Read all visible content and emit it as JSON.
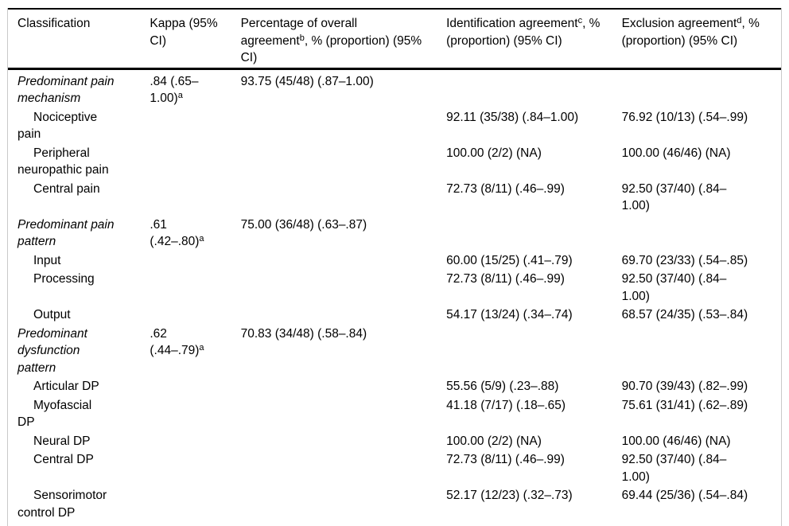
{
  "table": {
    "columns": [
      {
        "id": "classification",
        "lines": [
          "Classification"
        ]
      },
      {
        "id": "kappa",
        "lines": [
          "Kappa (95%",
          "CI)"
        ]
      },
      {
        "id": "overall-agreement",
        "lines": [
          "Percentage of overall",
          "agreement^b, % (proportion) (95%",
          "CI)"
        ]
      },
      {
        "id": "identification-agreement",
        "lines": [
          "Identification agreement^c, %",
          "(proportion) (95% CI)"
        ]
      },
      {
        "id": "exclusion-agreement",
        "lines": [
          "Exclusion agreement^d, %",
          "(proportion) (95% CI)"
        ]
      }
    ],
    "rows": [
      {
        "style": "section",
        "label_lines": [
          "Predominant pain",
          "mechanism"
        ],
        "kappa_lines": [
          ".84 (.65–",
          "1.00)^a"
        ],
        "overall_lines": [
          "93.75 (45/48) (.87–1.00)"
        ],
        "identification_lines": [],
        "exclusion_lines": []
      },
      {
        "style": "item",
        "label_lines": [
          "Nociceptive",
          "pain"
        ],
        "kappa_lines": [],
        "overall_lines": [],
        "identification_lines": [
          "92.11 (35/38) (.84–1.00)"
        ],
        "exclusion_lines": [
          "76.92 (10/13) (.54–.99)"
        ]
      },
      {
        "style": "item",
        "label_lines": [
          "Peripheral",
          "neuropathic pain"
        ],
        "kappa_lines": [],
        "overall_lines": [],
        "identification_lines": [
          "100.00 (2/2) (NA)"
        ],
        "exclusion_lines": [
          "100.00 (46/46) (NA)"
        ]
      },
      {
        "style": "item",
        "label_lines": [
          "Central pain"
        ],
        "kappa_lines": [],
        "overall_lines": [],
        "identification_lines": [
          "72.73 (8/11) (.46–.99)"
        ],
        "exclusion_lines": [
          "92.50 (37/40) (.84–",
          "1.00)"
        ]
      },
      {
        "style": "section",
        "label_lines": [
          "Predominant pain",
          "pattern"
        ],
        "kappa_lines": [
          ".61",
          "(.42–.80)^a"
        ],
        "overall_lines": [
          "75.00 (36/48) (.63–.87)"
        ],
        "identification_lines": [],
        "exclusion_lines": []
      },
      {
        "style": "item",
        "label_lines": [
          "Input"
        ],
        "kappa_lines": [],
        "overall_lines": [],
        "identification_lines": [
          "60.00 (15/25) (.41–.79)"
        ],
        "exclusion_lines": [
          "69.70 (23/33) (.54–.85)"
        ]
      },
      {
        "style": "item",
        "label_lines": [
          "Processing"
        ],
        "kappa_lines": [],
        "overall_lines": [],
        "identification_lines": [
          "72.73 (8/11) (.46–.99)"
        ],
        "exclusion_lines": [
          "92.50 (37/40) (.84–",
          "1.00)"
        ]
      },
      {
        "style": "item",
        "label_lines": [
          "Output"
        ],
        "kappa_lines": [],
        "overall_lines": [],
        "identification_lines": [
          "54.17 (13/24) (.34–.74)"
        ],
        "exclusion_lines": [
          "68.57 (24/35) (.53–.84)"
        ]
      },
      {
        "style": "section",
        "label_lines": [
          "Predominant",
          "dysfunction",
          "pattern"
        ],
        "kappa_lines": [
          ".62",
          "(.44–.79)^a"
        ],
        "overall_lines": [
          "70.83 (34/48) (.58–.84)"
        ],
        "identification_lines": [],
        "exclusion_lines": []
      },
      {
        "style": "item",
        "label_lines": [
          "Articular DP"
        ],
        "kappa_lines": [],
        "overall_lines": [],
        "identification_lines": [
          "55.56 (5/9) (.23–.88)"
        ],
        "exclusion_lines": [
          "90.70 (39/43) (.82–.99)"
        ]
      },
      {
        "style": "item",
        "label_lines": [
          "Myofascial",
          "DP"
        ],
        "kappa_lines": [],
        "overall_lines": [],
        "identification_lines": [
          "41.18 (7/17) (.18–.65)"
        ],
        "exclusion_lines": [
          "75.61 (31/41) (.62–.89)"
        ]
      },
      {
        "style": "item",
        "label_lines": [
          "Neural DP"
        ],
        "kappa_lines": [],
        "overall_lines": [],
        "identification_lines": [
          "100.00 (2/2) (NA)"
        ],
        "exclusion_lines": [
          "100.00 (46/46) (NA)"
        ]
      },
      {
        "style": "item",
        "label_lines": [
          "Central DP"
        ],
        "kappa_lines": [],
        "overall_lines": [],
        "identification_lines": [
          "72.73 (8/11) (.46–.99)"
        ],
        "exclusion_lines": [
          "92.50 (37/40) (.84–",
          "1.00)"
        ]
      },
      {
        "style": "item",
        "label_lines": [
          "Sensorimotor",
          "control DP"
        ],
        "kappa_lines": [],
        "overall_lines": [],
        "identification_lines": [
          "52.17 (12/23) (.32–.73)"
        ],
        "exclusion_lines": [
          "69.44 (25/36) (.54–.84)"
        ]
      }
    ]
  }
}
